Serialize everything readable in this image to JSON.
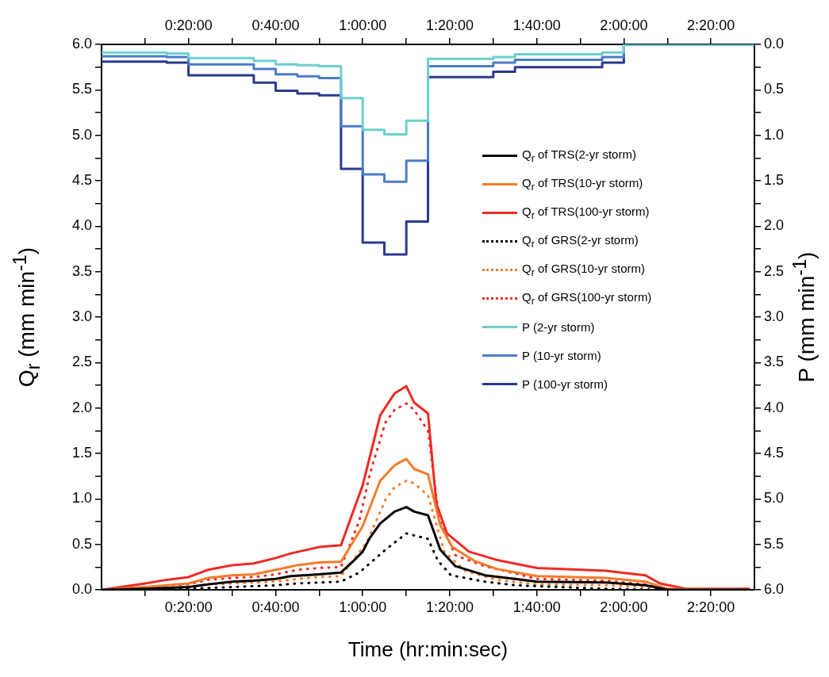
{
  "chart_data": {
    "type": "line",
    "xlabel": "Time (hr:min:sec)",
    "ylabel": "Q$_{r}$ (mm min$^{-1}$)",
    "y2label": "P (mm min$^{-1}$)",
    "xlim": [
      0,
      2.5
    ],
    "xticks": [
      {
        "value": 0.1667,
        "label": null
      },
      {
        "value": 0.3333,
        "label": "0:20:00"
      },
      {
        "value": 0.5,
        "label": null
      },
      {
        "value": 0.6667,
        "label": "0:40:00"
      },
      {
        "value": 0.8333,
        "label": null
      },
      {
        "value": 1,
        "label": "1:00:00"
      },
      {
        "value": 1.1667,
        "label": null
      },
      {
        "value": 1.3333,
        "label": "1:20:00"
      },
      {
        "value": 1.5,
        "label": null
      },
      {
        "value": 1.6667,
        "label": "1:40:00"
      },
      {
        "value": 1.8333,
        "label": null
      },
      {
        "value": 2,
        "label": "2:00:00"
      },
      {
        "value": 2.1667,
        "label": null
      },
      {
        "value": 2.3333,
        "label": "2:20:00"
      }
    ],
    "x2lim": [
      0,
      2.5
    ],
    "x2ticks": [
      {
        "value": 0.1667,
        "label": null
      },
      {
        "value": 0.3333,
        "label": "0:20:00"
      },
      {
        "value": 0.5,
        "label": null
      },
      {
        "value": 0.6667,
        "label": "0:40:00"
      },
      {
        "value": 0.8333,
        "label": null
      },
      {
        "value": 1,
        "label": "1:00:00"
      },
      {
        "value": 1.1667,
        "label": null
      },
      {
        "value": 1.3333,
        "label": "1:20:00"
      },
      {
        "value": 1.5,
        "label": null
      },
      {
        "value": 1.6667,
        "label": "1:40:00"
      },
      {
        "value": 1.8333,
        "label": null
      },
      {
        "value": 2,
        "label": "2:00:00"
      },
      {
        "value": 2.1667,
        "label": null
      },
      {
        "value": 2.3333,
        "label": "2:20:00"
      }
    ],
    "ylim": [
      0,
      6
    ],
    "yticks": [
      {
        "value": 0,
        "label": "0.0"
      },
      {
        "value": 0.25,
        "label": null
      },
      {
        "value": 0.5,
        "label": "0.5"
      },
      {
        "value": 0.75,
        "label": null
      },
      {
        "value": 1,
        "label": "1.0"
      },
      {
        "value": 1.25,
        "label": null
      },
      {
        "value": 1.5,
        "label": "1.5"
      },
      {
        "value": 1.75,
        "label": null
      },
      {
        "value": 2,
        "label": "2.0"
      },
      {
        "value": 2.25,
        "label": null
      },
      {
        "value": 2.5,
        "label": "2.5"
      },
      {
        "value": 2.75,
        "label": null
      },
      {
        "value": 3,
        "label": "3.0"
      },
      {
        "value": 3.25,
        "label": null
      },
      {
        "value": 3.5,
        "label": "3.5"
      },
      {
        "value": 3.75,
        "label": null
      },
      {
        "value": 4,
        "label": "4.0"
      },
      {
        "value": 4.25,
        "label": null
      },
      {
        "value": 4.5,
        "label": "4.5"
      },
      {
        "value": 4.75,
        "label": null
      },
      {
        "value": 5,
        "label": "5.0"
      },
      {
        "value": 5.25,
        "label": null
      },
      {
        "value": 5.5,
        "label": "5.5"
      },
      {
        "value": 5.75,
        "label": null
      },
      {
        "value": 6,
        "label": "6.0"
      }
    ],
    "y2lim": [
      6,
      0
    ],
    "y2ticks": [
      {
        "value": 0,
        "label": "0.0"
      },
      {
        "value": 0.25,
        "label": null
      },
      {
        "value": 0.5,
        "label": "0.5"
      },
      {
        "value": 0.75,
        "label": null
      },
      {
        "value": 1,
        "label": "1.0"
      },
      {
        "value": 1.25,
        "label": null
      },
      {
        "value": 1.5,
        "label": "1.5"
      },
      {
        "value": 1.75,
        "label": null
      },
      {
        "value": 2,
        "label": "2.0"
      },
      {
        "value": 2.25,
        "label": null
      },
      {
        "value": 2.5,
        "label": "2.5"
      },
      {
        "value": 2.75,
        "label": null
      },
      {
        "value": 3,
        "label": "3.0"
      },
      {
        "value": 3.25,
        "label": null
      },
      {
        "value": 3.5,
        "label": "3.5"
      },
      {
        "value": 3.75,
        "label": null
      },
      {
        "value": 4,
        "label": "4.0"
      },
      {
        "value": 4.25,
        "label": null
      },
      {
        "value": 4.5,
        "label": "4.5"
      },
      {
        "value": 4.75,
        "label": null
      },
      {
        "value": 5,
        "label": "5.0"
      },
      {
        "value": 5.25,
        "label": null
      },
      {
        "value": 5.5,
        "label": "5.5"
      },
      {
        "value": 5.75,
        "label": null
      },
      {
        "value": 6,
        "label": "6.0"
      }
    ],
    "grid": false,
    "legend": "right",
    "series": [
      {
        "name": "Q$_{r}$ of TRS(2-yr storm)",
        "color": "#000000",
        "line_style": "solid",
        "x": [
          0,
          0.167,
          0.333,
          0.408,
          0.5,
          0.583,
          0.667,
          0.725,
          0.833,
          0.917,
          0.962,
          1,
          1.027,
          1.067,
          1.122,
          1.167,
          1.197,
          1.25,
          1.297,
          1.355,
          1.468,
          1.583,
          1.667,
          1.93,
          2.083,
          2.167,
          2.483
        ],
        "values": [
          0,
          0.01,
          0.03,
          0.06,
          0.09,
          0.1,
          0.12,
          0.15,
          0.17,
          0.19,
          0.31,
          0.42,
          0.57,
          0.73,
          0.86,
          0.91,
          0.86,
          0.82,
          0.44,
          0.26,
          0.16,
          0.12,
          0.09,
          0.08,
          0.05,
          0,
          0
        ]
      },
      {
        "name": "Q$_{r}$ of TRS(10-yr storm)",
        "color": "#f47b2a",
        "line_style": "solid",
        "x": [
          0,
          0.167,
          0.333,
          0.408,
          0.5,
          0.583,
          0.667,
          0.75,
          0.833,
          0.917,
          1,
          1.067,
          1.122,
          1.167,
          1.197,
          1.25,
          1.297,
          1.343,
          1.427,
          1.512,
          1.667,
          1.93,
          2.083,
          2.167,
          2.483
        ],
        "values": [
          0,
          0.03,
          0.07,
          0.13,
          0.16,
          0.17,
          0.22,
          0.27,
          0.3,
          0.31,
          0.7,
          1.2,
          1.37,
          1.44,
          1.33,
          1.27,
          0.71,
          0.47,
          0.32,
          0.23,
          0.15,
          0.13,
          0.09,
          0.01,
          0
        ]
      },
      {
        "name": "Q$_{r}$ of TRS(100-yr storm)",
        "color": "#ee2a24",
        "line_style": "solid",
        "x": [
          0,
          0.167,
          0.25,
          0.333,
          0.408,
          0.5,
          0.583,
          0.667,
          0.725,
          0.833,
          0.917,
          0.962,
          1,
          1.027,
          1.067,
          1.122,
          1.167,
          1.197,
          1.25,
          1.282,
          1.323,
          1.407,
          1.512,
          1.668,
          1.93,
          2.082,
          2.138,
          2.242,
          2.483
        ],
        "values": [
          0,
          0.07,
          0.11,
          0.14,
          0.22,
          0.27,
          0.29,
          0.35,
          0.4,
          0.47,
          0.49,
          0.85,
          1.15,
          1.46,
          1.92,
          2.16,
          2.24,
          2.06,
          1.94,
          0.95,
          0.62,
          0.42,
          0.33,
          0.24,
          0.21,
          0.16,
          0.07,
          0.01,
          0.01
        ]
      },
      {
        "name": "Q$_{r}$ of GRS(2-yr storm)",
        "color": "#000000",
        "line_style": "dotted",
        "x": [
          0,
          0.167,
          0.333,
          0.408,
          0.5,
          0.583,
          0.667,
          0.75,
          0.833,
          0.917,
          0.987,
          1.087,
          1.167,
          1.25,
          1.288,
          1.338,
          1.467,
          1.583,
          1.93,
          2.167,
          2.483
        ],
        "values": [
          0,
          0,
          0.01,
          0.02,
          0.03,
          0.04,
          0.05,
          0.07,
          0.08,
          0.09,
          0.19,
          0.44,
          0.62,
          0.56,
          0.32,
          0.16,
          0.09,
          0.05,
          0.01,
          0,
          0
        ]
      },
      {
        "name": "Q$_{r}$ of GRS(10-yr storm)",
        "color": "#f47b2a",
        "line_style": "dotted",
        "x": [
          0,
          0.167,
          0.333,
          0.408,
          0.5,
          0.583,
          0.667,
          0.75,
          0.833,
          0.917,
          1.017,
          1.087,
          1.122,
          1.167,
          1.197,
          1.25,
          1.312,
          1.392,
          1.512,
          1.667,
          1.93,
          2.083,
          2.167,
          2.483
        ],
        "values": [
          0,
          0.01,
          0.03,
          0.06,
          0.07,
          0.08,
          0.09,
          0.12,
          0.14,
          0.15,
          0.53,
          0.99,
          1.13,
          1.2,
          1.17,
          1.04,
          0.42,
          0.21,
          0.11,
          0.06,
          0.05,
          0.03,
          0,
          0
        ]
      },
      {
        "name": "Q$_{r}$ of GRS(100-yr storm)",
        "color": "#ee2a24",
        "line_style": "dotted",
        "x": [
          0,
          0.167,
          0.333,
          0.408,
          0.5,
          0.583,
          0.667,
          0.75,
          0.833,
          0.917,
          0.987,
          1.027,
          1.087,
          1.122,
          1.167,
          1.197,
          1.25,
          1.293,
          1.355,
          1.467,
          1.583,
          1.667,
          1.93,
          2.083,
          2.167,
          2.483
        ],
        "values": [
          0,
          0.03,
          0.06,
          0.11,
          0.13,
          0.14,
          0.17,
          0.22,
          0.24,
          0.25,
          0.76,
          1.27,
          1.84,
          1.98,
          2.05,
          1.98,
          1.75,
          0.77,
          0.38,
          0.26,
          0.18,
          0.12,
          0.1,
          0.06,
          0,
          0
        ]
      },
      {
        "name": "P (2-yr storm)",
        "color": "#6dcfd0",
        "type": "step",
        "axis": "y2",
        "line_style": "solid",
        "x": [
          0,
          0.25,
          0.333,
          0.583,
          0.667,
          0.75,
          0.833,
          0.917,
          1,
          1.083,
          1.167,
          1.25,
          1.5,
          1.583,
          1.917,
          2,
          2.5
        ],
        "values": [
          0.09,
          0.1,
          0.15,
          0.18,
          0.22,
          0.23,
          0.24,
          0.59,
          0.94,
          0.99,
          0.84,
          0.16,
          0.14,
          0.11,
          0.09,
          0,
          0
        ]
      },
      {
        "name": "P (10-yr storm)",
        "color": "#4a7cc8",
        "type": "step",
        "axis": "y2",
        "line_style": "solid",
        "x": [
          0,
          0.25,
          0.333,
          0.583,
          0.667,
          0.75,
          0.833,
          0.917,
          1,
          1.083,
          1.167,
          1.25,
          1.5,
          1.583,
          1.917,
          2,
          2.5
        ],
        "values": [
          0.13,
          0.14,
          0.22,
          0.27,
          0.33,
          0.35,
          0.37,
          0.9,
          1.43,
          1.51,
          1.28,
          0.24,
          0.2,
          0.17,
          0.14,
          0,
          0
        ]
      },
      {
        "name": "P (100-yr storm)",
        "color": "#2b3990",
        "type": "step",
        "axis": "y2",
        "line_style": "solid",
        "x": [
          0,
          0.25,
          0.333,
          0.583,
          0.667,
          0.75,
          0.833,
          0.917,
          1,
          1.083,
          1.167,
          1.25,
          1.5,
          1.583,
          1.917,
          2,
          2.5
        ],
        "values": [
          0.19,
          0.2,
          0.34,
          0.42,
          0.51,
          0.54,
          0.56,
          1.37,
          2.18,
          2.31,
          1.95,
          0.36,
          0.3,
          0.25,
          0.2,
          0,
          0
        ]
      }
    ]
  }
}
